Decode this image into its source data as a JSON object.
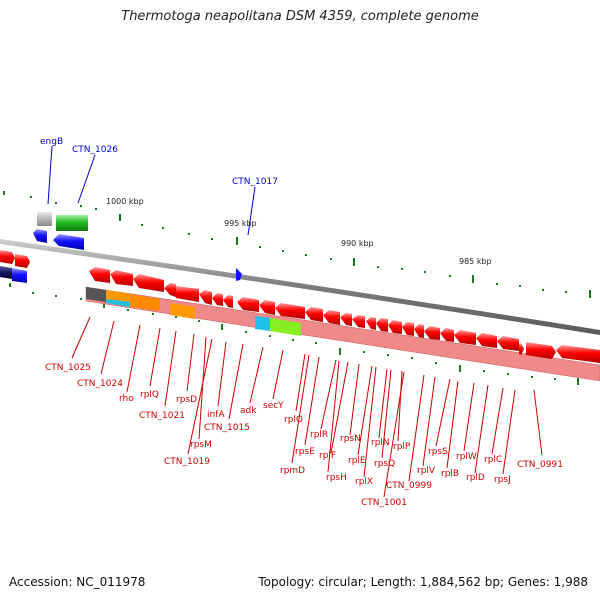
{
  "title": "Thermotoga neapolitana DSM 4359, complete genome",
  "accession": "Accession: NC_011978",
  "summary": "Topology: circular; Length: 1,884,562 bp; Genes: 1,988",
  "colors": {
    "forward_gene": "#ff0000",
    "reverse_gene": "#1a1aff",
    "forward_label": "#cc0000",
    "reverse_label": "#0000cc",
    "tick": "#1e7a1e",
    "backbone": "#777777"
  },
  "ruler": [
    {
      "label": "1000 kbp"
    },
    {
      "label": "995 kbp"
    },
    {
      "label": "990 kbp"
    },
    {
      "label": "985 kbp"
    }
  ],
  "reverse_labels": [
    "engB",
    "CTN_1026",
    "CTN_1017"
  ],
  "forward_labels": [
    "CTN_1025",
    "CTN_1024",
    "rho",
    "rplQ",
    "CTN_1021",
    "rpsD",
    "rpsM",
    "CTN_1019",
    "infA",
    "CTN_1015",
    "adk",
    "secY",
    "rplO",
    "rpmD",
    "rpsE",
    "rplR",
    "rpsH",
    "rplF",
    "rpsN",
    "rplE",
    "rplX",
    "rplN",
    "rpsQ",
    "rplP",
    "CTN_1001",
    "CTN_0999",
    "rplV",
    "rpsS",
    "rplB",
    "rplW",
    "rplD",
    "rplC",
    "rpsJ",
    "CTN_0991"
  ]
}
